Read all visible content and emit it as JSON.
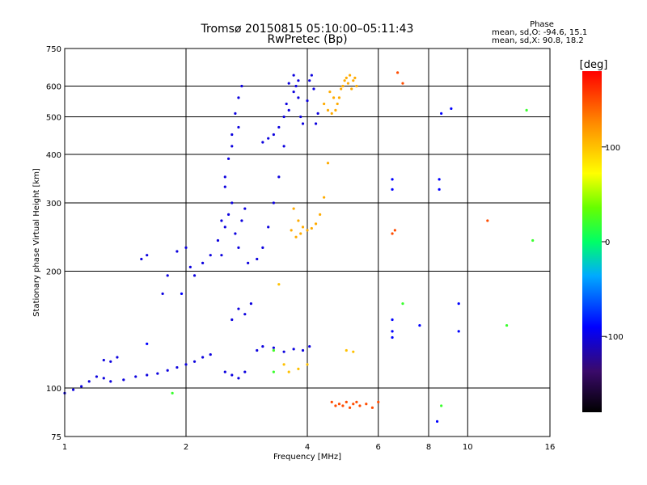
{
  "chart_data": {
    "type": "scatter",
    "title": "Tromsø 20150815 05:10:00–05:11:43",
    "subtitle": "RwPretec (Bp)",
    "xlabel": "Frequency [MHz]",
    "ylabel": "Stationary phase Virtual Height [km]",
    "x_scale": "log",
    "y_scale": "log",
    "xlim": [
      1,
      16
    ],
    "ylim": [
      75,
      750
    ],
    "xticks": [
      1,
      2,
      4,
      6,
      8,
      10,
      16
    ],
    "yticks": [
      75,
      100,
      200,
      300,
      400,
      500,
      600,
      750
    ],
    "grid": true,
    "phase_stats": {
      "title": "Phase",
      "line_o": "mean, sd,O: -94.6, 15.1",
      "line_x": "mean, sd,X:  90.8, 18.2"
    },
    "colorbar": {
      "label": "[deg]",
      "range": [
        -180,
        180
      ],
      "ticks": [
        -100,
        0,
        100
      ]
    },
    "series": [
      {
        "points": [
          [
            1.0,
            97,
            -100
          ],
          [
            1.05,
            99,
            -100
          ],
          [
            1.1,
            101,
            -100
          ],
          [
            1.15,
            104,
            -100
          ],
          [
            1.2,
            107,
            -100
          ],
          [
            1.25,
            106,
            -100
          ],
          [
            1.3,
            104,
            -100
          ],
          [
            1.4,
            105,
            -100
          ],
          [
            1.5,
            107,
            -100
          ],
          [
            1.6,
            108,
            -100
          ],
          [
            1.7,
            109,
            -100
          ],
          [
            1.8,
            111,
            -100
          ],
          [
            1.9,
            113,
            -100
          ],
          [
            2.0,
            115,
            -100
          ],
          [
            2.1,
            117,
            -100
          ],
          [
            2.2,
            120,
            -100
          ],
          [
            2.3,
            122,
            -100
          ],
          [
            1.25,
            118,
            -100
          ],
          [
            1.3,
            117,
            -100
          ],
          [
            1.35,
            120,
            -100
          ],
          [
            1.55,
            215,
            -100
          ],
          [
            1.6,
            220,
            -100
          ],
          [
            1.75,
            175,
            -100
          ],
          [
            1.8,
            195,
            -100
          ],
          [
            1.9,
            225,
            -100
          ],
          [
            2.0,
            230,
            -100
          ],
          [
            2.05,
            205,
            -100
          ],
          [
            2.1,
            195,
            -100
          ],
          [
            2.2,
            210,
            -100
          ],
          [
            2.3,
            220,
            -100
          ],
          [
            2.4,
            240,
            -100
          ],
          [
            2.45,
            270,
            -100
          ],
          [
            2.5,
            330,
            -100
          ],
          [
            2.55,
            390,
            -100
          ],
          [
            2.6,
            450,
            -100
          ],
          [
            2.65,
            510,
            -100
          ],
          [
            2.7,
            560,
            -100
          ],
          [
            2.75,
            600,
            -100
          ],
          [
            2.45,
            220,
            -100
          ],
          [
            2.5,
            260,
            -100
          ],
          [
            2.55,
            280,
            -100
          ],
          [
            2.6,
            300,
            -100
          ],
          [
            2.65,
            250,
            -100
          ],
          [
            2.7,
            230,
            -100
          ],
          [
            2.75,
            270,
            -100
          ],
          [
            2.8,
            290,
            -100
          ],
          [
            2.85,
            210,
            -100
          ],
          [
            2.5,
            350,
            -100
          ],
          [
            2.6,
            420,
            -100
          ],
          [
            2.7,
            470,
            -100
          ],
          [
            3.0,
            215,
            -100
          ],
          [
            3.1,
            230,
            -100
          ],
          [
            3.2,
            260,
            -100
          ],
          [
            3.3,
            300,
            -100
          ],
          [
            3.4,
            350,
            -100
          ],
          [
            3.5,
            420,
            -100
          ],
          [
            3.6,
            520,
            -100
          ],
          [
            3.7,
            580,
            -100
          ],
          [
            3.8,
            620,
            -100
          ],
          [
            3.1,
            430,
            -100
          ],
          [
            3.2,
            440,
            -100
          ],
          [
            3.3,
            450,
            -100
          ],
          [
            3.4,
            470,
            -100
          ],
          [
            3.5,
            500,
            -100
          ],
          [
            3.55,
            540,
            -100
          ],
          [
            3.6,
            610,
            -100
          ],
          [
            3.7,
            640,
            -100
          ],
          [
            3.75,
            600,
            -100
          ],
          [
            3.8,
            560,
            -100
          ],
          [
            3.85,
            500,
            -100
          ],
          [
            3.9,
            480,
            -100
          ],
          [
            4.0,
            550,
            -100
          ],
          [
            4.05,
            620,
            -100
          ],
          [
            4.1,
            640,
            -100
          ],
          [
            4.15,
            590,
            -100
          ],
          [
            4.2,
            480,
            -100
          ],
          [
            4.25,
            510,
            -100
          ],
          [
            2.6,
            150,
            -100
          ],
          [
            2.7,
            160,
            -100
          ],
          [
            2.8,
            155,
            -100
          ],
          [
            2.9,
            165,
            -100
          ],
          [
            2.5,
            110,
            -100
          ],
          [
            2.6,
            108,
            -100
          ],
          [
            2.7,
            106,
            -100
          ],
          [
            2.8,
            110,
            -100
          ],
          [
            3.0,
            125,
            -100
          ],
          [
            3.1,
            128,
            -100
          ],
          [
            3.3,
            127,
            -100
          ],
          [
            3.5,
            124,
            -100
          ],
          [
            3.7,
            126,
            -100
          ],
          [
            3.9,
            125,
            -100
          ],
          [
            4.05,
            128,
            -100
          ]
        ]
      },
      {
        "points": [
          [
            3.7,
            290,
            110
          ],
          [
            3.8,
            270,
            110
          ],
          [
            3.9,
            260,
            110
          ],
          [
            4.0,
            255,
            110
          ],
          [
            4.1,
            258,
            110
          ],
          [
            4.2,
            265,
            110
          ],
          [
            4.3,
            280,
            110
          ],
          [
            4.4,
            310,
            110
          ],
          [
            4.5,
            380,
            110
          ],
          [
            3.65,
            255,
            110
          ],
          [
            3.75,
            245,
            110
          ],
          [
            3.85,
            250,
            110
          ],
          [
            4.4,
            540,
            110
          ],
          [
            4.5,
            520,
            110
          ],
          [
            4.6,
            510,
            110
          ],
          [
            4.7,
            520,
            110
          ],
          [
            4.8,
            560,
            110
          ],
          [
            4.9,
            600,
            110
          ],
          [
            5.0,
            630,
            110
          ],
          [
            5.1,
            640,
            110
          ],
          [
            5.2,
            620,
            110
          ],
          [
            5.3,
            600,
            110
          ],
          [
            4.55,
            580,
            110
          ],
          [
            4.65,
            560,
            110
          ],
          [
            4.75,
            540,
            110
          ],
          [
            4.85,
            590,
            110
          ],
          [
            4.95,
            620,
            110
          ],
          [
            5.05,
            610,
            110
          ],
          [
            5.15,
            590,
            110
          ],
          [
            5.25,
            630,
            110
          ],
          [
            3.3,
            125,
            100
          ],
          [
            3.5,
            115,
            100
          ],
          [
            3.6,
            110,
            100
          ],
          [
            3.8,
            112,
            100
          ],
          [
            4.0,
            115,
            100
          ],
          [
            5.0,
            125,
            100
          ],
          [
            5.2,
            124,
            100
          ],
          [
            3.4,
            185,
            100
          ]
        ]
      },
      {
        "points": [
          [
            4.6,
            92,
            150
          ],
          [
            4.7,
            90,
            150
          ],
          [
            4.8,
            91,
            150
          ],
          [
            4.9,
            90,
            150
          ],
          [
            5.0,
            92,
            150
          ],
          [
            5.1,
            89,
            150
          ],
          [
            5.2,
            91,
            150
          ],
          [
            5.3,
            92,
            150
          ],
          [
            5.4,
            90,
            150
          ],
          [
            5.6,
            91,
            150
          ],
          [
            5.8,
            89,
            150
          ],
          [
            6.0,
            92,
            150
          ],
          [
            6.5,
            250,
            150
          ],
          [
            6.6,
            255,
            150
          ],
          [
            6.7,
            650,
            150
          ],
          [
            6.9,
            610,
            150
          ],
          [
            11.2,
            270,
            150
          ]
        ]
      },
      {
        "points": [
          [
            6.5,
            150,
            -90
          ],
          [
            6.5,
            140,
            -90
          ],
          [
            6.5,
            135,
            -90
          ],
          [
            6.5,
            325,
            -90
          ],
          [
            6.5,
            345,
            -90
          ],
          [
            8.5,
            325,
            -90
          ],
          [
            8.5,
            345,
            -90
          ],
          [
            9.5,
            165,
            -90
          ],
          [
            9.5,
            140,
            -90
          ],
          [
            8.4,
            82,
            -90
          ],
          [
            7.6,
            145,
            -90
          ],
          [
            8.6,
            510,
            -90
          ],
          [
            9.1,
            525,
            -90
          ],
          [
            1.95,
            175,
            -90
          ],
          [
            1.6,
            130,
            -90
          ]
        ]
      },
      {
        "points": [
          [
            6.9,
            165,
            20
          ],
          [
            3.3,
            125,
            20
          ],
          [
            3.3,
            110,
            20
          ],
          [
            14.5,
            240,
            20
          ],
          [
            1.85,
            97,
            20
          ],
          [
            12.5,
            145,
            20
          ],
          [
            14.0,
            520,
            20
          ],
          [
            8.6,
            90,
            20
          ]
        ]
      }
    ]
  }
}
